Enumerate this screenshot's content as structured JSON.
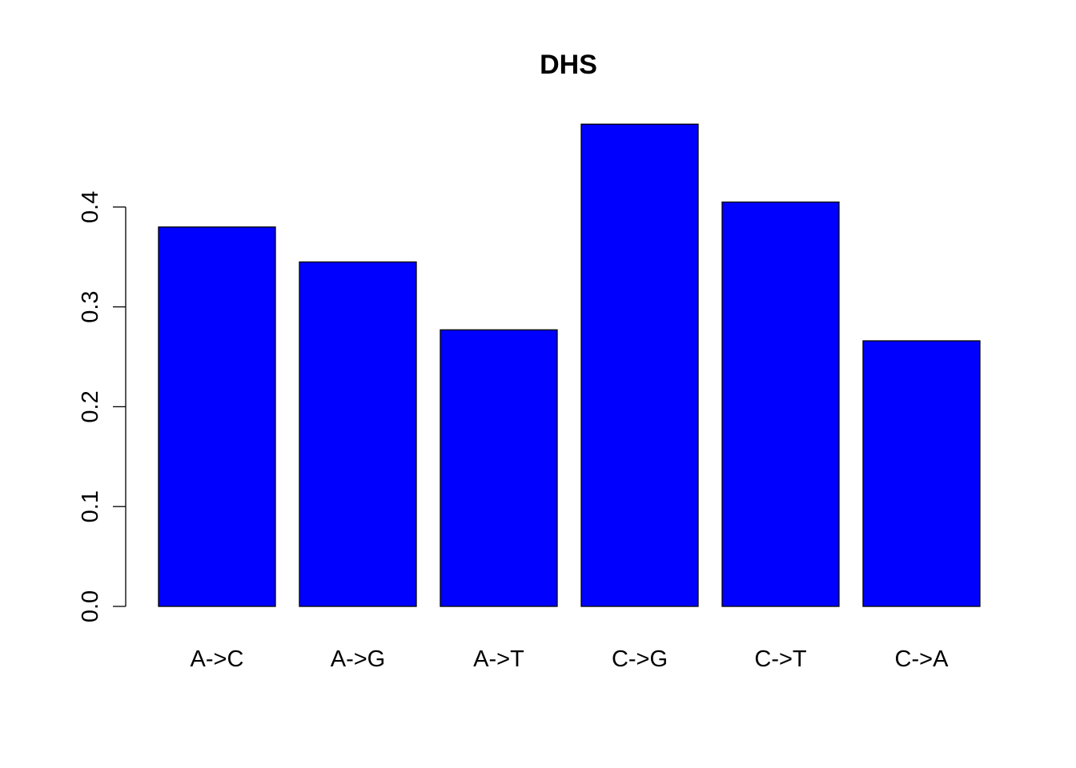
{
  "chart_data": {
    "type": "bar",
    "title": "DHS",
    "xlabel": "",
    "ylabel": "",
    "categories": [
      "A->C",
      "A->G",
      "A->T",
      "C->G",
      "C->T",
      "C->A"
    ],
    "values": [
      0.38,
      0.345,
      0.277,
      0.483,
      0.405,
      0.266
    ],
    "ylim": [
      0,
      0.5
    ],
    "yticks": [
      0.0,
      0.1,
      0.2,
      0.3,
      0.4
    ],
    "ytick_labels": [
      "0.0",
      "0.1",
      "0.2",
      "0.3",
      "0.4"
    ],
    "bar_color": "#0000ff",
    "border_color": "#000000",
    "grid": false,
    "legend": "none"
  }
}
